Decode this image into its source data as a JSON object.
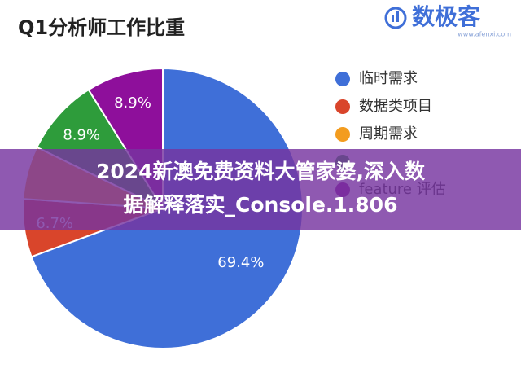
{
  "chart_data": {
    "type": "pie",
    "title": "Q1分析师工作比重",
    "categories": [
      "临时需求",
      "数据类项目",
      "周期需求",
      null,
      "feature 评估"
    ],
    "values": [
      69.4,
      6.7,
      6.1,
      8.9,
      8.9
    ],
    "value_labels": [
      "69.4%",
      "6.7%",
      null,
      "8.9%",
      "8.9%"
    ],
    "colors": [
      "#3f6fd8",
      "#d9452b",
      "#f39c1f",
      "#2e9c3b",
      "#8e0f9b"
    ]
  },
  "watermark": {
    "brand": "数极客",
    "url": "www.afenxi.com"
  },
  "banner": {
    "line1": "2024新澳免费资料大管家婆,深入数",
    "line2": "据解释落实_Console.1.806"
  }
}
